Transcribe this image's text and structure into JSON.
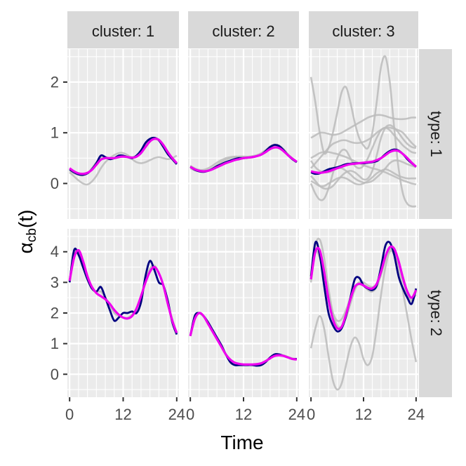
{
  "chart_data": {
    "type": "line",
    "xlabel": "Time",
    "ylabel": "αcb(t)",
    "ylabel_main": "α",
    "ylabel_sub": "cb",
    "ylabel_suffix": "(t)",
    "x_ticks": [
      0,
      12,
      24
    ],
    "xlim": [
      -0.5,
      24.5
    ],
    "columns": [
      "cluster: 1",
      "cluster: 2",
      "cluster: 3"
    ],
    "rows": [
      {
        "label": "type: 1",
        "ylim": [
          -0.7,
          2.65
        ],
        "y_ticks": [
          0,
          1,
          2
        ]
      },
      {
        "label": "type: 2",
        "ylim": [
          -0.75,
          4.75
        ],
        "y_ticks": [
          0,
          1,
          2,
          3,
          4
        ]
      }
    ],
    "colors": {
      "estimate": "#000080",
      "fit": "#ee00ee",
      "individual": "#bbbbbb",
      "panel_bg": "#ebebeb",
      "strip_bg": "#d9d9d9",
      "grid": "#ffffff"
    },
    "x": [
      0,
      1,
      2,
      3,
      4,
      5,
      6,
      7,
      8,
      9,
      10,
      11,
      12,
      13,
      14,
      15,
      16,
      17,
      18,
      19,
      20,
      21,
      22,
      23,
      24
    ],
    "panels": [
      {
        "row": 0,
        "col": 0,
        "estimate": [
          0.28,
          0.22,
          0.18,
          0.17,
          0.2,
          0.28,
          0.4,
          0.55,
          0.52,
          0.48,
          0.5,
          0.55,
          0.55,
          0.52,
          0.5,
          0.55,
          0.65,
          0.8,
          0.88,
          0.9,
          0.85,
          0.72,
          0.58,
          0.48,
          0.38
        ],
        "fit": [
          0.3,
          0.24,
          0.2,
          0.19,
          0.21,
          0.27,
          0.37,
          0.47,
          0.5,
          0.5,
          0.5,
          0.52,
          0.53,
          0.52,
          0.51,
          0.53,
          0.6,
          0.72,
          0.83,
          0.88,
          0.86,
          0.76,
          0.62,
          0.5,
          0.4
        ],
        "individuals": [
          [
            0.25,
            0.2,
            0.17,
            0.16,
            0.2,
            0.3,
            0.42,
            0.5,
            0.52,
            0.5,
            0.5,
            0.52,
            0.54,
            0.54,
            0.52,
            0.55,
            0.62,
            0.74,
            0.85,
            0.9,
            0.86,
            0.74,
            0.6,
            0.48,
            0.4
          ],
          [
            0.22,
            0.14,
            0.06,
            0.0,
            -0.02,
            0.04,
            0.15,
            0.3,
            0.42,
            0.5,
            0.56,
            0.6,
            0.6,
            0.56,
            0.48,
            0.42,
            0.4,
            0.42,
            0.46,
            0.5,
            0.52,
            0.5,
            0.48,
            0.5,
            0.55
          ]
        ]
      },
      {
        "row": 0,
        "col": 1,
        "estimate": [
          0.33,
          0.27,
          0.24,
          0.23,
          0.25,
          0.29,
          0.34,
          0.38,
          0.42,
          0.45,
          0.48,
          0.5,
          0.5,
          0.51,
          0.52,
          0.54,
          0.57,
          0.64,
          0.72,
          0.76,
          0.74,
          0.66,
          0.56,
          0.48,
          0.42
        ],
        "fit": [
          0.33,
          0.28,
          0.25,
          0.24,
          0.25,
          0.28,
          0.32,
          0.36,
          0.4,
          0.43,
          0.46,
          0.48,
          0.5,
          0.51,
          0.52,
          0.54,
          0.57,
          0.62,
          0.68,
          0.71,
          0.7,
          0.64,
          0.56,
          0.49,
          0.43
        ],
        "individuals": [
          [
            0.35,
            0.3,
            0.27,
            0.27,
            0.3,
            0.35,
            0.41,
            0.46,
            0.5,
            0.52,
            0.53,
            0.53,
            0.53,
            0.53,
            0.54,
            0.56,
            0.6,
            0.66,
            0.73,
            0.77,
            0.75,
            0.68,
            0.58,
            0.5,
            0.43
          ],
          [
            0.3,
            0.26,
            0.24,
            0.24,
            0.26,
            0.3,
            0.36,
            0.42,
            0.47,
            0.5,
            0.52,
            0.53,
            0.53,
            0.52,
            0.52,
            0.54,
            0.58,
            0.64,
            0.7,
            0.73,
            0.71,
            0.65,
            0.57,
            0.49,
            0.42
          ]
        ]
      },
      {
        "row": 0,
        "col": 2,
        "estimate": [
          0.22,
          0.19,
          0.2,
          0.24,
          0.28,
          0.3,
          0.32,
          0.35,
          0.38,
          0.39,
          0.4,
          0.4,
          0.4,
          0.41,
          0.42,
          0.44,
          0.5,
          0.58,
          0.64,
          0.67,
          0.65,
          0.58,
          0.48,
          0.4,
          0.33
        ],
        "fit": [
          0.24,
          0.22,
          0.21,
          0.22,
          0.24,
          0.27,
          0.3,
          0.33,
          0.36,
          0.38,
          0.39,
          0.4,
          0.41,
          0.42,
          0.43,
          0.46,
          0.5,
          0.56,
          0.62,
          0.65,
          0.64,
          0.58,
          0.5,
          0.41,
          0.33
        ],
        "individuals": [
          [
            2.1,
            1.6,
            1.0,
            0.6,
            0.7,
            1.0,
            1.4,
            1.8,
            1.9,
            1.6,
            1.2,
            0.9,
            0.75,
            0.7,
            1.0,
            1.6,
            2.3,
            2.5,
            2.0,
            1.1,
            0.3,
            -0.2,
            -0.4,
            -0.45,
            -0.45
          ],
          [
            0.3,
            0.4,
            0.5,
            0.6,
            0.7,
            0.78,
            0.82,
            0.85,
            0.85,
            0.82,
            0.8,
            0.8,
            0.82,
            0.86,
            0.92,
            1.0,
            1.06,
            1.1,
            1.1,
            1.08,
            1.05,
            1.0,
            0.9,
            0.8,
            0.72
          ],
          [
            0.0,
            -0.2,
            -0.32,
            -0.3,
            -0.1,
            0.2,
            0.5,
            0.65,
            0.65,
            0.5,
            0.35,
            0.3,
            0.35,
            0.5,
            0.7,
            0.9,
            1.05,
            1.1,
            1.05,
            0.95,
            0.85,
            0.75,
            0.68,
            0.62,
            0.6
          ],
          [
            0.45,
            0.32,
            0.25,
            0.22,
            0.22,
            0.25,
            0.3,
            0.3,
            0.25,
            0.18,
            0.1,
            0.05,
            0.02,
            0.02,
            0.05,
            0.12,
            0.2,
            0.3,
            0.4,
            0.45,
            0.45,
            0.42,
            0.38,
            0.35,
            0.32
          ],
          [
            0.9,
            0.95,
            1.0,
            1.0,
            0.98,
            0.96,
            0.97,
            1.0,
            1.05,
            1.1,
            1.15,
            1.2,
            1.25,
            1.3,
            1.33,
            1.35,
            1.35,
            1.33,
            1.3,
            1.28,
            1.27,
            1.27,
            1.28,
            1.3,
            1.3
          ],
          [
            0.15,
            0.05,
            -0.05,
            -0.1,
            -0.1,
            -0.05,
            0.05,
            0.15,
            0.22,
            0.25,
            0.22,
            0.15,
            0.08,
            0.1,
            0.25,
            0.55,
            0.9,
            1.1,
            1.15,
            1.1,
            1.0,
            0.88,
            0.78,
            0.72,
            0.7
          ],
          [
            0.5,
            0.55,
            0.6,
            0.62,
            0.62,
            0.6,
            0.58,
            0.55,
            0.52,
            0.48,
            0.44,
            0.4,
            0.36,
            0.33,
            0.3,
            0.28,
            0.25,
            0.22,
            0.18,
            0.14,
            0.1,
            0.06,
            0.03,
            0.0,
            -0.02
          ],
          [
            0.05,
            0.0,
            -0.05,
            -0.05,
            0.0,
            0.05,
            0.1,
            0.12,
            0.1,
            0.05,
            0.0,
            -0.02,
            0.0,
            0.05,
            0.12,
            0.2,
            0.25,
            0.28,
            0.25,
            0.2,
            0.15,
            0.12,
            0.1,
            0.1,
            0.1
          ]
        ]
      },
      {
        "row": 1,
        "col": 0,
        "estimate": [
          3.0,
          4.05,
          3.9,
          3.5,
          3.1,
          2.8,
          2.7,
          2.85,
          2.5,
          2.1,
          1.75,
          1.85,
          2.0,
          2.0,
          2.05,
          2.0,
          2.35,
          3.2,
          3.7,
          3.4,
          3.0,
          2.9,
          2.4,
          1.7,
          1.3
        ],
        "fit": [
          3.05,
          3.8,
          4.05,
          3.7,
          3.2,
          2.85,
          2.65,
          2.55,
          2.45,
          2.3,
          2.1,
          1.95,
          1.85,
          1.82,
          1.9,
          2.15,
          2.55,
          3.0,
          3.35,
          3.5,
          3.3,
          2.9,
          2.3,
          1.75,
          1.35
        ],
        "individuals": [
          [
            3.05,
            3.9,
            4.0,
            3.6,
            3.2,
            2.85,
            2.7,
            2.7,
            2.5,
            2.25,
            2.0,
            1.9,
            1.85,
            1.85,
            1.95,
            2.15,
            2.55,
            3.05,
            3.45,
            3.55,
            3.3,
            2.9,
            2.35,
            1.8,
            1.35
          ]
        ]
      },
      {
        "row": 1,
        "col": 1,
        "estimate": [
          1.25,
          1.9,
          2.0,
          1.9,
          1.7,
          1.45,
          1.2,
          0.95,
          0.65,
          0.4,
          0.3,
          0.3,
          0.3,
          0.3,
          0.3,
          0.28,
          0.3,
          0.4,
          0.55,
          0.65,
          0.65,
          0.6,
          0.55,
          0.5,
          0.5
        ],
        "fit": [
          1.25,
          1.8,
          2.0,
          1.9,
          1.65,
          1.4,
          1.15,
          0.9,
          0.65,
          0.48,
          0.38,
          0.34,
          0.32,
          0.32,
          0.32,
          0.33,
          0.36,
          0.43,
          0.52,
          0.6,
          0.62,
          0.6,
          0.55,
          0.5,
          0.48
        ],
        "individuals": [
          [
            1.25,
            1.85,
            2.0,
            1.88,
            1.65,
            1.4,
            1.15,
            0.9,
            0.66,
            0.48,
            0.38,
            0.34,
            0.32,
            0.32,
            0.32,
            0.33,
            0.36,
            0.44,
            0.54,
            0.62,
            0.64,
            0.62,
            0.57,
            0.52,
            0.5
          ]
        ]
      },
      {
        "row": 1,
        "col": 2,
        "estimate": [
          3.2,
          4.3,
          3.9,
          2.9,
          2.0,
          1.6,
          1.4,
          1.5,
          1.9,
          2.5,
          3.1,
          3.15,
          2.9,
          2.8,
          2.75,
          2.9,
          3.5,
          4.2,
          4.3,
          3.9,
          3.2,
          2.8,
          2.5,
          2.3,
          2.8
        ],
        "fit": [
          3.1,
          4.0,
          4.05,
          3.35,
          2.45,
          1.8,
          1.5,
          1.55,
          1.95,
          2.45,
          2.85,
          2.95,
          2.9,
          2.82,
          2.8,
          2.95,
          3.35,
          3.85,
          4.15,
          4.1,
          3.7,
          3.15,
          2.7,
          2.5,
          2.75
        ],
        "individuals": [
          [
            0.85,
            1.5,
            1.9,
            1.5,
            0.6,
            -0.2,
            -0.5,
            -0.3,
            0.3,
            0.9,
            1.2,
            1.0,
            0.5,
            0.3,
            0.6,
            1.5,
            2.6,
            3.5,
            4.0,
            3.9,
            3.4,
            2.7,
            1.9,
            1.1,
            0.4
          ],
          [
            3.0,
            4.2,
            4.4,
            3.8,
            2.8,
            2.0,
            1.6,
            1.55,
            1.85,
            2.3,
            2.75,
            3.0,
            3.0,
            2.9,
            2.85,
            2.95,
            3.3,
            3.8,
            4.1,
            4.0,
            3.6,
            3.05,
            2.6,
            2.4,
            2.7
          ],
          [
            3.2,
            4.0,
            3.8,
            3.2,
            2.5,
            2.0,
            1.75,
            1.8,
            2.1,
            2.5,
            2.85,
            3.0,
            2.9,
            2.75,
            2.7,
            2.85,
            3.25,
            3.75,
            4.05,
            4.0,
            3.6,
            3.1,
            2.65,
            2.45,
            2.6
          ]
        ]
      }
    ]
  }
}
